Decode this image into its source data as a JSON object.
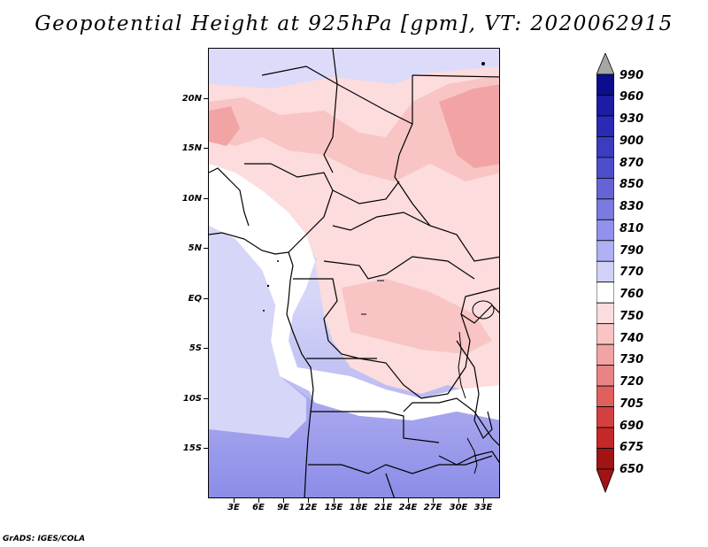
{
  "title": "Geopotential Height at 925hPa [gpm], VT: 2020062915",
  "footer": "GrADS: IGES/COLA",
  "y_axis_labels": [
    "20N",
    "15N",
    "10N",
    "5N",
    "EQ",
    "5S",
    "10S",
    "15S"
  ],
  "x_axis_labels": [
    "3E",
    "6E",
    "9E",
    "12E",
    "15E",
    "18E",
    "21E",
    "24E",
    "27E",
    "30E",
    "33E"
  ],
  "colorbar": {
    "levels": [
      "990",
      "960",
      "930",
      "900",
      "870",
      "850",
      "830",
      "810",
      "790",
      "770",
      "760",
      "750",
      "740",
      "730",
      "720",
      "705",
      "690",
      "675",
      "650"
    ],
    "colors": [
      "#0c0c8c",
      "#1c1ca4",
      "#2a2ab4",
      "#3c3cc0",
      "#4e4ecc",
      "#6464d6",
      "#7a7ae0",
      "#9292ec",
      "#b0b0f4",
      "#d2d2f8",
      "#ffffff",
      "#fcdcdc",
      "#f8c4c4",
      "#f2a4a4",
      "#ea8484",
      "#e06060",
      "#d44040",
      "#c42828",
      "#a01414"
    ],
    "top_arrow_color": "#a6a6a6",
    "bottom_arrow_color": "#a01414"
  }
}
